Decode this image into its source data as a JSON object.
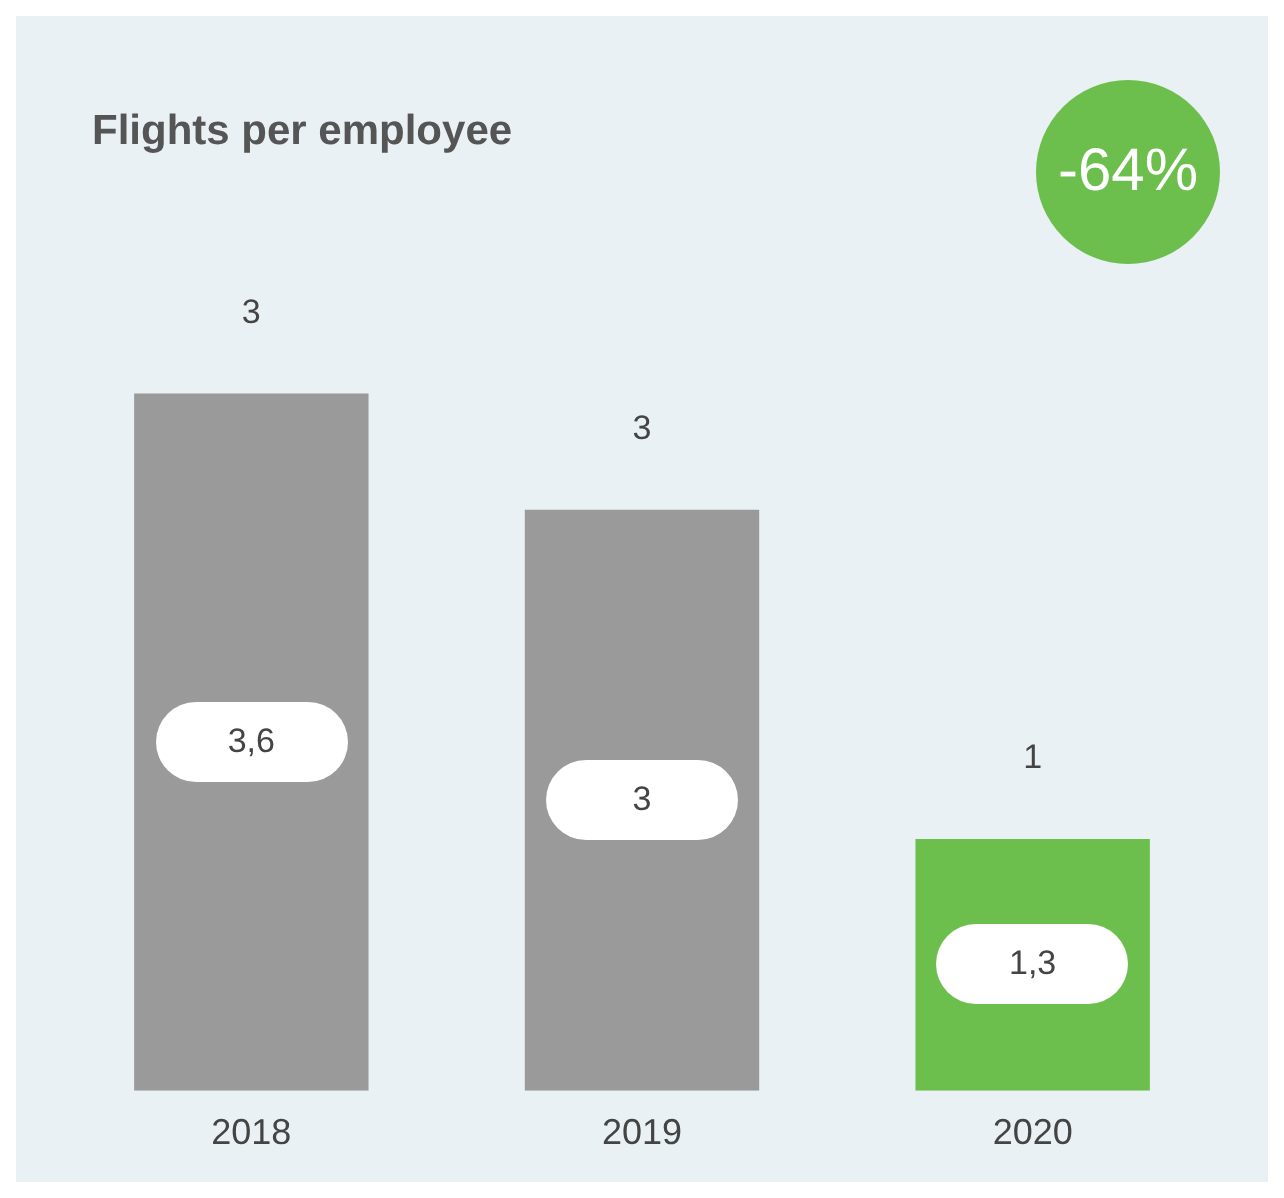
{
  "chart_data": {
    "type": "bar",
    "title": "Flights per employee",
    "categories": [
      "2018",
      "2019",
      "2020"
    ],
    "values": [
      3.6,
      3,
      1.3
    ],
    "colors": [
      "#9a9a9a",
      "#9a9a9a",
      "#6cbf4c"
    ],
    "value_labels": [
      "3,6",
      "3",
      "1,3"
    ],
    "annotations": [
      "-64%",
      {
        "text": "3",
        "x": "2018",
        "y": 3.6
      },
      {
        "text": "3",
        "x": "2019",
        "y": 3
      },
      {
        "text": "1",
        "x": "2020",
        "y": 1.3
      }
    ],
    "grid": false,
    "legend": false
  }
}
